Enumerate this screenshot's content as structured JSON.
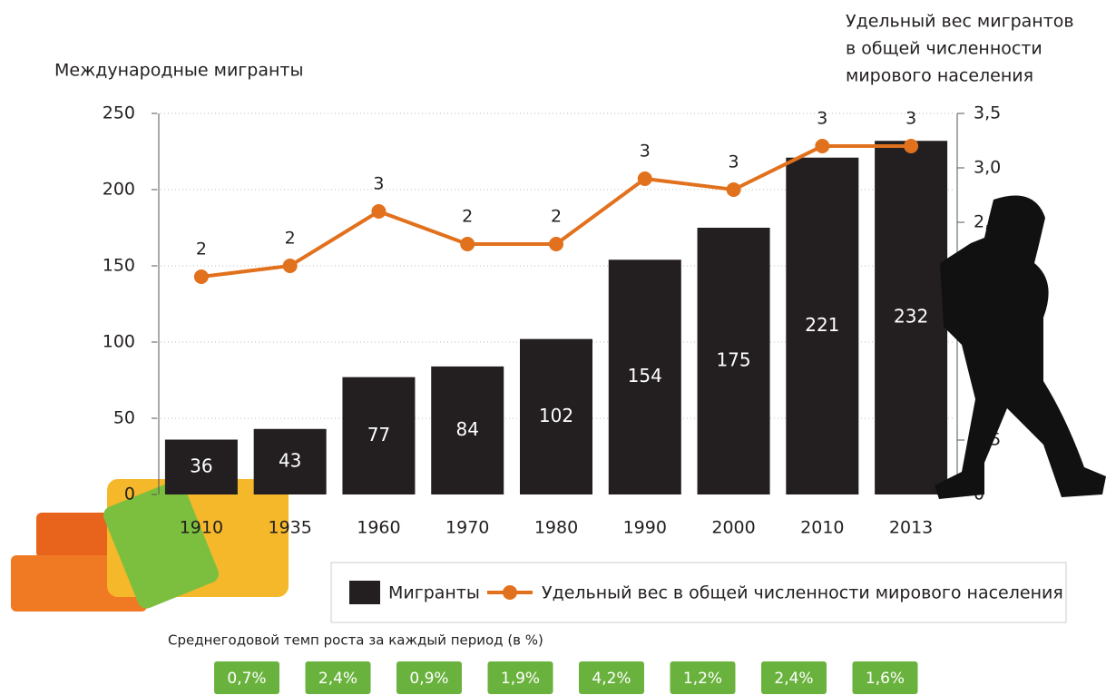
{
  "chart_data": {
    "type": "bar",
    "ylabel": "Международные мигранты",
    "y2label": [
      "Удельный вес мигрантов",
      "в общей численности",
      "мирового населения"
    ],
    "categories": [
      "1910",
      "1935",
      "1960",
      "1970",
      "1980",
      "1990",
      "2000",
      "2010",
      "2013"
    ],
    "series": [
      {
        "name": "Мигранты",
        "color": "#231f20",
        "values": [
          36,
          43,
          77,
          84,
          102,
          154,
          175,
          221,
          232
        ]
      },
      {
        "name": "Удельный вес в общей численности мирового населения",
        "color": "#e2711d",
        "axis": "y2",
        "values": [
          2.0,
          2.1,
          2.6,
          2.3,
          2.3,
          2.9,
          2.8,
          3.2,
          3.2
        ],
        "value_labels": [
          "2",
          "2",
          "3",
          "2",
          "2",
          "3",
          "3",
          "3",
          "3"
        ]
      }
    ],
    "ylim": [
      0,
      250
    ],
    "yticks": [
      0,
      50,
      100,
      150,
      200,
      250
    ],
    "y2lim": [
      0,
      3.5
    ],
    "y2ticks": [
      0,
      {
        "value": 0.5,
        "label": "0,5"
      },
      {
        "value": 2.5,
        "label": "2,5"
      },
      {
        "value": 3.0,
        "label": "3,0"
      },
      {
        "value": 3.5,
        "label": "3,5"
      }
    ],
    "grid": true,
    "growth_title": "Среднегодовой темп роста за каждый период (в %)",
    "growth_labels": [
      "0,7%",
      "2,4%",
      "0,9%",
      "1,9%",
      "4,2%",
      "1,2%",
      "2,4%",
      "1,6%"
    ],
    "growth_color": "#6ab23e"
  }
}
